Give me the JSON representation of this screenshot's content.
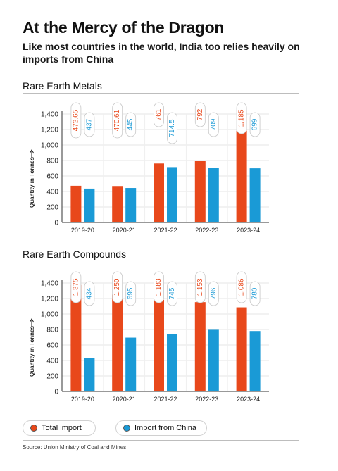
{
  "header": {
    "title": "At the Mercy of the Dragon",
    "subtitle": "Like most countries in the world, India too relies heavily on imports from China"
  },
  "colors": {
    "total": "#e8481b",
    "china": "#1a9ad6"
  },
  "legend": {
    "total_label": "Total import",
    "china_label": "Import from China"
  },
  "source": "Source: Union Ministry of Coal and Mines",
  "chart_data": [
    {
      "type": "bar",
      "title": "Rare Earth Metals",
      "ylabel": "Quantity in Tonnes",
      "ylim": [
        0,
        1400
      ],
      "yticks": [
        "0",
        "200",
        "400",
        "600",
        "800",
        "1,000",
        "1,200",
        "1,400"
      ],
      "categories": [
        "2019-20",
        "2020-21",
        "2021-22",
        "2022-23",
        "2023-24"
      ],
      "series": [
        {
          "values": [
            473.65,
            470.61,
            761,
            792,
            1185
          ],
          "labels": [
            "473.65",
            "470.61",
            "761",
            "792",
            "1,185"
          ]
        },
        {
          "values": [
            437,
            445,
            714.5,
            709,
            699
          ],
          "labels": [
            "437",
            "445",
            "714.5",
            "709",
            "699"
          ]
        }
      ]
    },
    {
      "type": "bar",
      "title": "Rare Earth Compounds",
      "ylabel": "Quantity in Tonnes",
      "ylim": [
        0,
        1400
      ],
      "yticks": [
        "0",
        "200",
        "400",
        "600",
        "800",
        "1,000",
        "1,200",
        "1,400"
      ],
      "categories": [
        "2019-20",
        "2020-21",
        "2021-22",
        "2022-23",
        "2023-24"
      ],
      "series": [
        {
          "values": [
            1375,
            1250,
            1183,
            1153,
            1086
          ],
          "labels": [
            "1,375",
            "1,250",
            "1,183",
            "1,153",
            "1,086"
          ]
        },
        {
          "values": [
            434,
            695,
            745,
            796,
            780
          ],
          "labels": [
            "434",
            "695",
            "745",
            "796",
            "780"
          ]
        }
      ]
    }
  ]
}
